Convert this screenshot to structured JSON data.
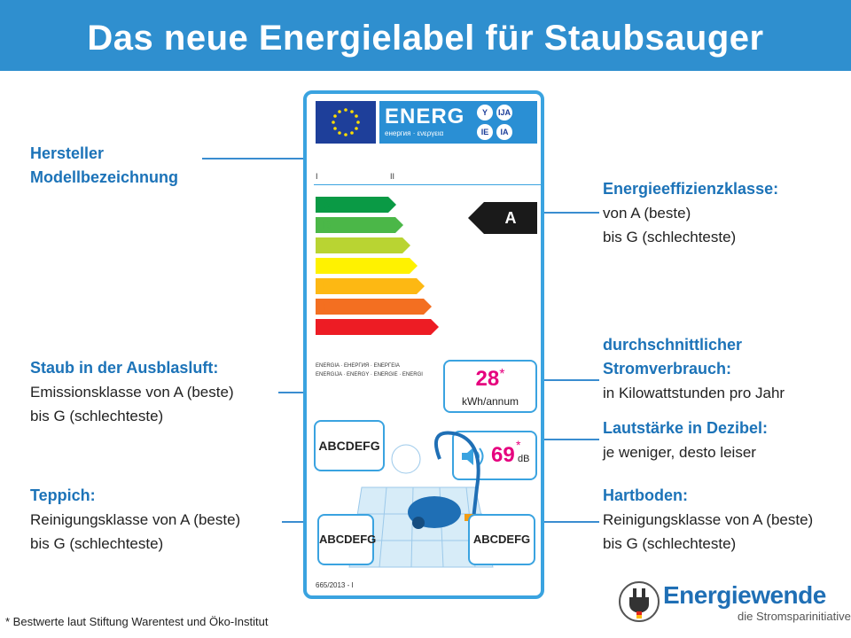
{
  "title": "Das neue Energielabel für Staubsauger",
  "callouts": {
    "hersteller": {
      "line1": "Hersteller",
      "line2": "Modellbezeichnung"
    },
    "effizienz": {
      "head": "Energieeffizienzklasse:",
      "line1": "von A (beste)",
      "line2": "bis G (schlechteste)"
    },
    "staub": {
      "head": "Staub in der Ausblasluft:",
      "line1": "Emissionsklasse von A (beste)",
      "line2": "bis G (schlechteste)"
    },
    "strom": {
      "head1": "durchschnittlicher",
      "head2": "Stromverbrauch:",
      "line1": "in Kilowattstunden pro Jahr"
    },
    "laut": {
      "head": "Lautstärke in Dezibel:",
      "line1": "je weniger, desto leiser"
    },
    "teppich": {
      "head": "Teppich:",
      "line1": "Reinigungsklasse von A (beste)",
      "line2": "bis G (schlechteste)"
    },
    "hartboden": {
      "head": "Hartboden:",
      "line1": "Reinigungsklasse von A (beste)",
      "line2": "bis G (schlechteste)"
    }
  },
  "label": {
    "energ": "ENERG",
    "energ_sub": "енергия · ενεργεια",
    "circles": [
      "Y",
      "IJA",
      "IE",
      "IA"
    ],
    "roman": [
      "I",
      "II"
    ],
    "classes": [
      "A",
      "B",
      "C",
      "D",
      "E",
      "F",
      "G"
    ],
    "class_colors": [
      "#0a9a45",
      "#4bb748",
      "#b9d432",
      "#fff200",
      "#fdb813",
      "#f36f21",
      "#ed1c24"
    ],
    "rated_class": "A",
    "energia_line1": "ENERGIA · ЕНЕРГИЯ · ΕΝΕΡΓΕΙΑ",
    "energia_line2": "ENERGIJA · ENERGY · ENERGIE · ENERGI",
    "kwh_value": "28",
    "kwh_star": "*",
    "kwh_unit": "kWh/annum",
    "db_value": "69",
    "db_star": "*",
    "db_unit": "dB",
    "dust_scale": "ABCDEFG",
    "carpet_scale": "ABCDEFG",
    "hard_scale": "ABCDEFG",
    "regulation": "665/2013 - I"
  },
  "footnote": "* Bestwerte laut Stiftung Warentest und Öko-Institut",
  "brand": {
    "name": "Energiewende",
    "tagline": "die Stromsparinitiative"
  }
}
